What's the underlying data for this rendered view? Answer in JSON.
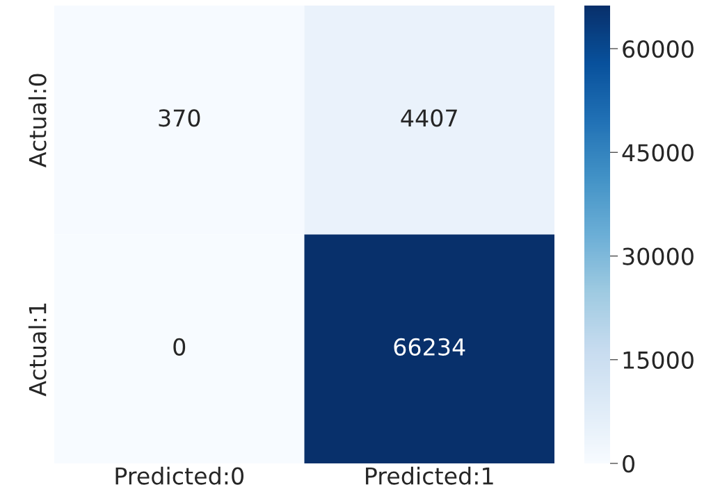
{
  "chart_data": {
    "type": "heatmap",
    "categories": [
      "Predicted:0",
      "Predicted:1"
    ],
    "y_categories": [
      "Actual:0",
      "Actual:1"
    ],
    "cells": [
      [
        370,
        4407
      ],
      [
        0,
        66234
      ]
    ],
    "data_labels": true,
    "clim": [
      0,
      66234
    ],
    "cticks": [
      0,
      15000,
      30000,
      45000,
      60000
    ]
  }
}
